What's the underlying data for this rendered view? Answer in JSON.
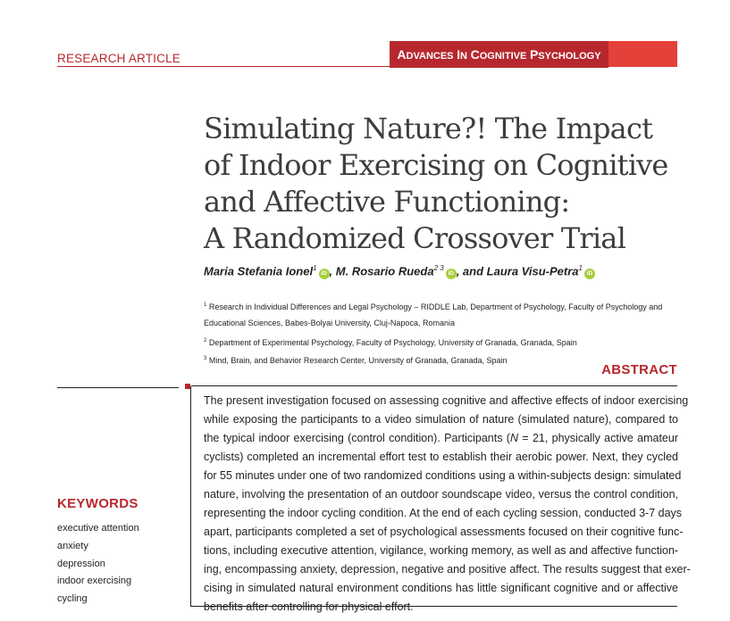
{
  "header": {
    "article_type": "Research Article",
    "journal": "Advances in Cognitive Psychology"
  },
  "title_lines": [
    "Simulating Nature?! The Impact",
    "of Indoor Exercising on Cognitive",
    "and Affective Functioning:",
    "A Randomized Crossover Trial"
  ],
  "authors": [
    {
      "name": "Maria Stefania Ionel",
      "sup": "1"
    },
    {
      "name": "M. Rosario Rueda",
      "sup": "2 3"
    },
    {
      "name": "Laura Visu-Petra",
      "sup": "1"
    }
  ],
  "orcid_label": "iD",
  "affiliations": [
    {
      "sup": "1",
      "text": "Research in Individual Differences and Legal Psychology – RIDDLE Lab, Department of Psychology, Faculty of Psychology and"
    },
    {
      "sup": "",
      "text": "Educational Sciences, Babes-Bolyai University, Cluj-Napoca, Romania"
    },
    {
      "sup": "2",
      "text": "Department of Experimental Psychology, Faculty of Psychology, University of Granada, Granada, Spain"
    },
    {
      "sup": "3",
      "text": "Mind, Brain, and Behavior Research Center, University of Granada, Granada, Spain"
    }
  ],
  "abstract": {
    "heading": "ABSTRACT",
    "lines": [
      "The present investigation focused on assessing cognitive and affective effects of indoor exercising",
      "while exposing the participants to a video simulation of nature (simulated nature), compared to",
      "the typical indoor exercising (control condition). Participants (N = 21, physically active amateur",
      "cyclists) completed an incremental effort test to establish their aerobic power. Next, they cycled",
      "for 55 minutes under one of two randomized conditions using a within-subjects design: simulated",
      "nature, involving the presentation of an outdoor soundscape video, versus the control condition,",
      "representing the indoor cycling condition. At the end of each cycling session, conducted 3-7 days",
      "apart, participants completed a set of psychological assessments focused on their cognitive func-",
      "tions, including executive attention, vigilance, working memory, as well as and affective function-",
      "ing, encompassing anxiety, depression, negative and positive affect. The results suggest that exer-",
      "cising in simulated natural environment conditions has little significant cognitive and or affective",
      "benefits after controlling for physical effort."
    ]
  },
  "keywords": {
    "heading": "KEYWORDS",
    "items": [
      "executive attention",
      "anxiety",
      "depression",
      "indoor exercising",
      "cycling"
    ]
  }
}
